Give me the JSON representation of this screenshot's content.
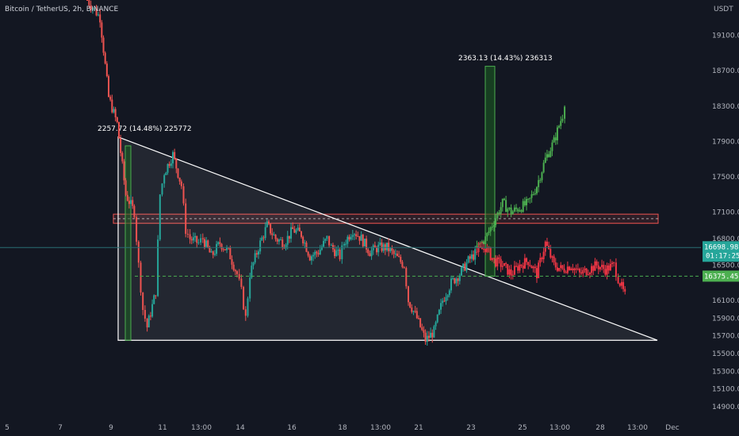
{
  "header": {
    "symbol": "Bitcoin / TetherUS, 2h, BINANCE",
    "currency": "USDT"
  },
  "colors": {
    "bg": "#131722",
    "up": "#26a69a",
    "down": "#ef5350",
    "projection_up": "#4caf50",
    "projection_down": "#f23645",
    "box_green": "#1b5e20",
    "zone": "#ef5350",
    "triangle": "#ffffff",
    "dashed": "#4caf50",
    "hline": "#2a6f73"
  },
  "chart_data": {
    "type": "candlestick",
    "ylim": [
      14800,
      19500
    ],
    "y_ticks": [
      "19100.00",
      "18700.00",
      "18300.00",
      "17900.00",
      "17500.00",
      "17100.00",
      "16800.00",
      "16500.00",
      "16100.00",
      "15900.00",
      "15700.00",
      "15500.00",
      "15300.00",
      "15100.00",
      "14900.00"
    ],
    "x_ticks": [
      "5",
      "7",
      "9",
      "11",
      "13:00",
      "14",
      "16",
      "18",
      "13:00",
      "21",
      "23",
      "25",
      "13:00",
      "28",
      "13:00",
      "Dec"
    ],
    "path": [
      [
        0,
        19500
      ],
      [
        3,
        19300
      ],
      [
        5,
        18400
      ],
      [
        7,
        18100
      ],
      [
        9,
        17300
      ],
      [
        11,
        17100
      ],
      [
        12,
        16500
      ],
      [
        13,
        16000
      ],
      [
        14,
        15800
      ],
      [
        16,
        16200
      ],
      [
        17,
        17300
      ],
      [
        18,
        17550
      ],
      [
        20,
        17750
      ],
      [
        22,
        17400
      ],
      [
        23,
        16900
      ],
      [
        24,
        16800
      ],
      [
        26,
        16750
      ],
      [
        27,
        16800
      ],
      [
        29,
        16600
      ],
      [
        31,
        16750
      ],
      [
        33,
        16650
      ],
      [
        35,
        16400
      ],
      [
        36,
        16200
      ],
      [
        37,
        15900
      ],
      [
        38,
        16400
      ],
      [
        40,
        16700
      ],
      [
        42,
        16950
      ],
      [
        44,
        16800
      ],
      [
        46,
        16750
      ],
      [
        48,
        16900
      ],
      [
        50,
        16850
      ],
      [
        52,
        16600
      ],
      [
        54,
        16650
      ],
      [
        56,
        16800
      ],
      [
        57,
        16700
      ],
      [
        59,
        16600
      ],
      [
        60,
        16750
      ],
      [
        62,
        16900
      ],
      [
        64,
        16800
      ],
      [
        66,
        16650
      ],
      [
        68,
        16700
      ],
      [
        70,
        16700
      ],
      [
        72,
        16600
      ],
      [
        74,
        16500
      ],
      [
        75,
        16100
      ],
      [
        77,
        15900
      ],
      [
        79,
        15650
      ],
      [
        81,
        15750
      ],
      [
        83,
        16100
      ],
      [
        85,
        16300
      ],
      [
        87,
        16400
      ],
      [
        89,
        16550
      ],
      [
        91,
        16650
      ]
    ],
    "projection_up": [
      [
        91,
        16700
      ],
      [
        93,
        16800
      ],
      [
        95,
        17000
      ],
      [
        97,
        17200
      ],
      [
        99,
        17100
      ],
      [
        101,
        17150
      ],
      [
        103,
        17200
      ],
      [
        105,
        17400
      ],
      [
        107,
        17700
      ],
      [
        109,
        17900
      ],
      [
        111,
        18200
      ],
      [
        112,
        18500
      ]
    ],
    "projection_down": [
      [
        91,
        16650
      ],
      [
        93,
        16700
      ],
      [
        95,
        16550
      ],
      [
        97,
        16500
      ],
      [
        99,
        16400
      ],
      [
        101,
        16500
      ],
      [
        103,
        16550
      ],
      [
        105,
        16400
      ],
      [
        107,
        16750
      ],
      [
        109,
        16500
      ],
      [
        111,
        16450
      ],
      [
        113,
        16500
      ],
      [
        115,
        16400
      ],
      [
        117,
        16450
      ],
      [
        119,
        16500
      ],
      [
        121,
        16450
      ],
      [
        123,
        16500
      ],
      [
        124,
        16350
      ],
      [
        126,
        16100
      ]
    ],
    "triangle": {
      "p1": [
        10,
        17950
      ],
      "p2": [
        135,
        15650
      ],
      "p3": [
        10,
        15650
      ]
    },
    "resistance_zone": [
      17000,
      17050
    ],
    "dashed_level": 16375.45,
    "current_line": 16698.98,
    "measure_boxes": [
      {
        "x0": 15,
        "x1": 16,
        "y0": 15650,
        "y1": 17850,
        "label": "2257.72 (14.48%) 225772"
      },
      {
        "x0": 89,
        "x1": 91,
        "y0": 16375,
        "y1": 18750,
        "label": "2363.13 (14.43%) 236313"
      }
    ],
    "last_price_tag": {
      "price": "16698.98",
      "time": "01:17:25"
    },
    "dashed_tag": "16375.45"
  }
}
